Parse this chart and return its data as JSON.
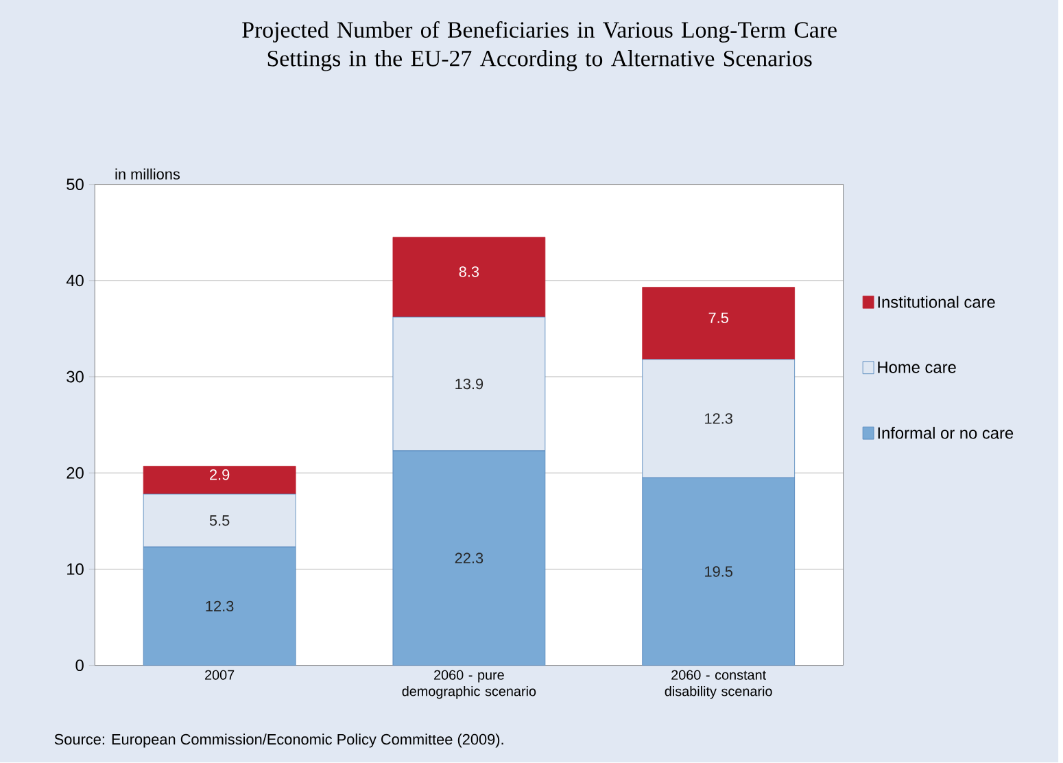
{
  "chart_data": {
    "type": "bar",
    "stacked": true,
    "title": "Projected Number of Beneficiaries in Various Long-Term Care Settings in the EU-27 According to Alternative Scenarios",
    "ylabel": "in millions",
    "categories": [
      "2007",
      "2060 - pure demographic scenario",
      "2060 - constant disability scenario"
    ],
    "series": [
      {
        "name": "Informal or no care",
        "color": "#7aaad6",
        "values": [
          12.3,
          22.3,
          19.5
        ]
      },
      {
        "name": "Home care",
        "color": "#dfe7f2",
        "values": [
          5.5,
          13.9,
          12.3
        ]
      },
      {
        "name": "Institutional care",
        "color": "#be2130",
        "values": [
          2.9,
          8.3,
          7.5
        ]
      }
    ],
    "ylim": [
      0,
      50
    ],
    "yticks": [
      0,
      10,
      20,
      30,
      40,
      50
    ],
    "grid": "y",
    "legend": "right",
    "data_labels": true,
    "annotations": [
      "Source: European Commission/Economic Policy Committee (2009)."
    ]
  }
}
